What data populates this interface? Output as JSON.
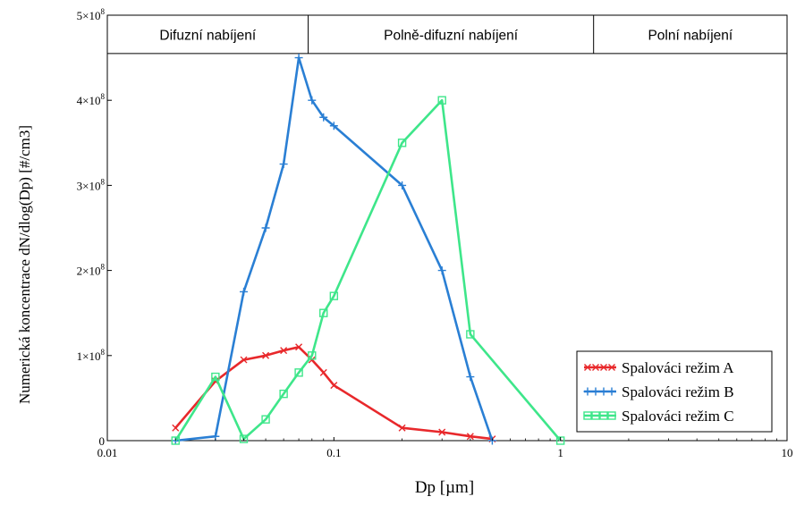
{
  "chart_data": {
    "type": "line",
    "x_scale": "log",
    "xlim": [
      0.01,
      10
    ],
    "ylim": [
      0,
      500000000
    ],
    "xlabel": "Dp [µm]",
    "ylabel": "Numerická koncentrace dN/dlog(Dp) [#/cm3]",
    "x_ticks": [
      {
        "value": 0.01,
        "label": "0.01"
      },
      {
        "value": 0.1,
        "label": "0.1"
      },
      {
        "value": 1,
        "label": "1"
      },
      {
        "value": 10,
        "label": "10"
      }
    ],
    "y_ticks": [
      {
        "value": 0,
        "mant": "0",
        "exp": ""
      },
      {
        "value": 100000000,
        "mant": "1×10",
        "exp": "8"
      },
      {
        "value": 200000000,
        "mant": "2×10",
        "exp": "8"
      },
      {
        "value": 300000000,
        "mant": "3×10",
        "exp": "8"
      },
      {
        "value": 400000000,
        "mant": "4×10",
        "exp": "8"
      },
      {
        "value": 500000000,
        "mant": "5×10",
        "exp": "8"
      }
    ],
    "regions": [
      {
        "label": "Difuzní nabíjení",
        "from": 0.01,
        "to": 0.077
      },
      {
        "label": "Polně-difuzní nabíjení",
        "from": 0.077,
        "to": 1.4
      },
      {
        "label": "Polní nabíjení",
        "from": 1.4,
        "to": 10
      }
    ],
    "regions_band_top": 500000000,
    "regions_band_bottom": 455000000,
    "legend_position": "bottom-right",
    "series": [
      {
        "name": "Spalováci režim A",
        "color": "#e8282b",
        "marker": "x",
        "x": [
          0.02,
          0.03,
          0.04,
          0.05,
          0.06,
          0.07,
          0.08,
          0.09,
          0.1,
          0.2,
          0.3,
          0.4,
          0.5
        ],
        "y": [
          15000000,
          70000000,
          95000000,
          100000000,
          106000000,
          110000000,
          95000000,
          80000000,
          65000000,
          15000000,
          10000000,
          5000000,
          2000000
        ]
      },
      {
        "name": "Spalováci režim B",
        "color": "#2a7fd4",
        "marker": "+",
        "x": [
          0.02,
          0.03,
          0.04,
          0.05,
          0.06,
          0.07,
          0.08,
          0.09,
          0.1,
          0.2,
          0.3,
          0.4,
          0.5
        ],
        "y": [
          0,
          5000000,
          175000000,
          250000000,
          325000000,
          450000000,
          400000000,
          380000000,
          370000000,
          300000000,
          200000000,
          75000000,
          0
        ]
      },
      {
        "name": "Spalováci režim C",
        "color": "#3ee68a",
        "marker": "square",
        "x": [
          0.02,
          0.03,
          0.04,
          0.05,
          0.06,
          0.07,
          0.08,
          0.09,
          0.1,
          0.2,
          0.3,
          0.4,
          1
        ],
        "y": [
          0,
          75000000,
          2000000,
          25000000,
          55000000,
          80000000,
          100000000,
          150000000,
          170000000,
          350000000,
          400000000,
          125000000,
          0
        ]
      }
    ]
  }
}
